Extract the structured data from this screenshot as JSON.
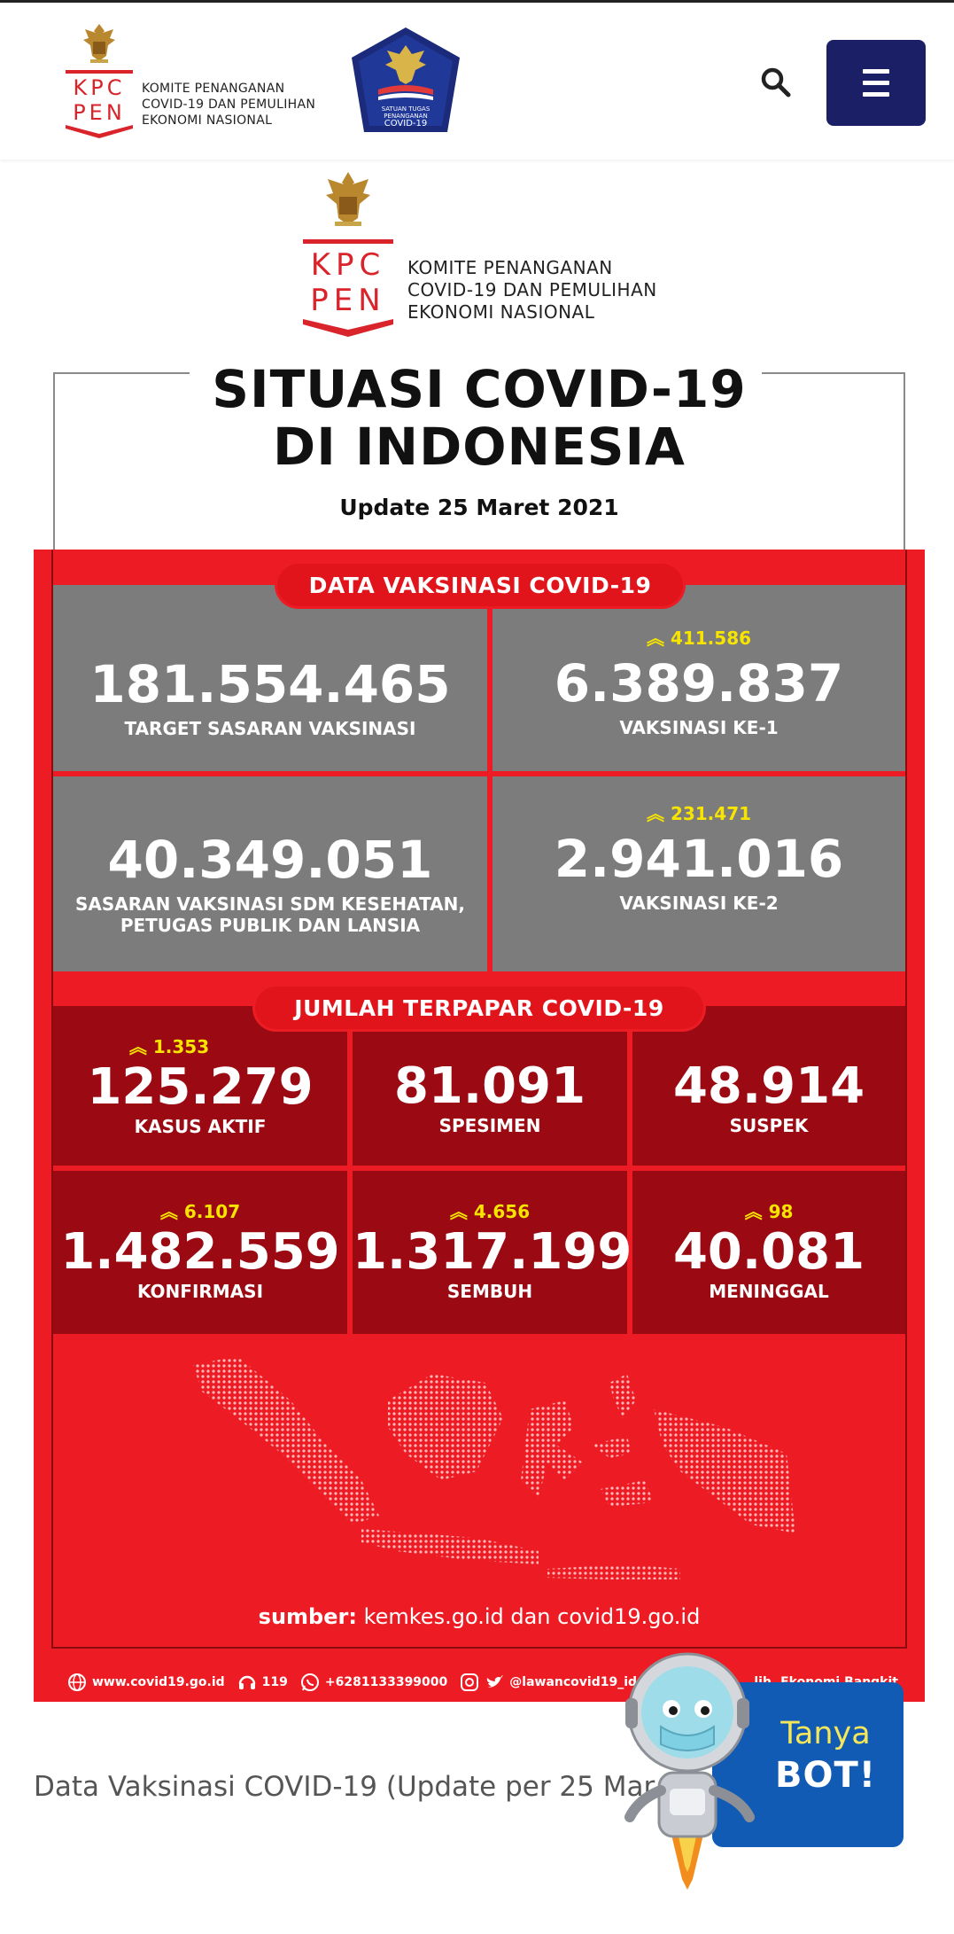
{
  "header": {
    "kpc_logo_letters": [
      "KPC",
      "PEN"
    ],
    "kpc_text_lines": [
      "KOMITE PENANGANAN",
      "COVID-19 DAN PEMULIHAN",
      "EKONOMI NASIONAL"
    ],
    "satgas_text_lines": [
      "SATUAN TUGAS",
      "PENANGANAN",
      "COVID-19"
    ],
    "icons": {
      "search": "search-icon",
      "menu": "hamburger-menu-icon"
    },
    "menu_color": "#1b2066"
  },
  "infographic": {
    "kpc_logo_letters": [
      "KPC",
      "PEN"
    ],
    "kpc_text_lines": [
      "KOMITE PENANGANAN",
      "COVID-19 DAN PEMULIHAN",
      "EKONOMI NASIONAL"
    ],
    "title_line1": "SITUASI COVID-19",
    "title_line2": "DI INDONESIA",
    "update": "Update 25 Maret 2021",
    "vaccination": {
      "section_label": "DATA VAKSINASI COVID-19",
      "target": {
        "value": "181.554.465",
        "label": "TARGET SASARAN VAKSINASI"
      },
      "dose1": {
        "increase": "411.586",
        "value": "6.389.837",
        "label": "VAKSINASI KE-1"
      },
      "sasaran": {
        "value": "40.349.051",
        "label_line1": "SASARAN VAKSINASI SDM KESEHATAN,",
        "label_line2": "PETUGAS PUBLIK DAN LANSIA"
      },
      "dose2": {
        "increase": "231.471",
        "value": "2.941.016",
        "label": "VAKSINASI KE-2"
      }
    },
    "exposure": {
      "section_label": "JUMLAH TERPAPAR COVID-19",
      "kasus_aktif": {
        "increase": "1.353",
        "value": "125.279",
        "label": "KASUS AKTIF"
      },
      "spesimen": {
        "value": "81.091",
        "label": "SPESIMEN"
      },
      "suspek": {
        "value": "48.914",
        "label": "SUSPEK"
      },
      "konfirmasi": {
        "increase": "6.107",
        "value": "1.482.559",
        "label": "KONFIRMASI"
      },
      "sembuh": {
        "increase": "4.656",
        "value": "1.317.199",
        "label": "SEMBUH"
      },
      "meninggal": {
        "increase": "98",
        "value": "40.081",
        "label": "MENINGGAL"
      }
    },
    "source_label": "sumber:",
    "source_text": "kemkes.go.id dan covid19.go.id",
    "footer": {
      "website": "www.covid19.go.id",
      "hotline": "119",
      "whatsapp": "+6281133399000",
      "social": "@lawancovid19_id",
      "tagline": "...lih, Ekonomi Bangkit"
    },
    "colors": {
      "red": "#ed1c24",
      "gray_cell": "#7c7c7c",
      "dark_red_cell": "#9b0a12",
      "increase": "#f7e400"
    }
  },
  "caption": "Data Vaksinasi COVID-19 (Update per 25 Mar",
  "bot": {
    "line1": "Tanya",
    "line2": "BOT!",
    "icon": "robot-mascot-icon"
  }
}
